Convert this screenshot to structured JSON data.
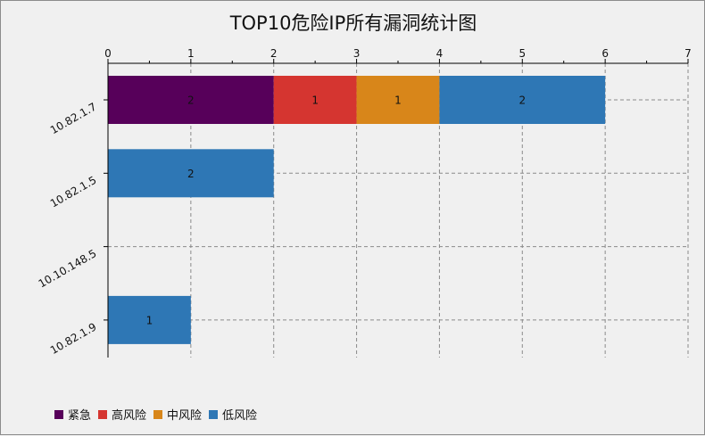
{
  "chart_data": {
    "type": "bar",
    "orientation": "horizontal",
    "stacked": true,
    "title": "TOP10危险IP所有漏洞统计图",
    "categories": [
      "10.82.1.7",
      "10.82.1.5",
      "10.10.148.5",
      "10.82.1.9"
    ],
    "series": [
      {
        "name": "紧急",
        "color": "#57005a",
        "values": [
          2,
          0,
          0,
          0
        ]
      },
      {
        "name": "高风险",
        "color": "#d53530",
        "values": [
          1,
          0,
          0,
          0
        ]
      },
      {
        "name": "中风险",
        "color": "#d8861a",
        "values": [
          1,
          0,
          0,
          0
        ]
      },
      {
        "name": "低风险",
        "color": "#2e77b5",
        "values": [
          2,
          2,
          0,
          1
        ]
      }
    ],
    "xlim": [
      0,
      7
    ],
    "xticks": [
      "0",
      "1",
      "2",
      "3",
      "4",
      "5",
      "6",
      "7"
    ],
    "xaxis_position": "top",
    "grid": true,
    "legend_position": "bottom-left"
  }
}
